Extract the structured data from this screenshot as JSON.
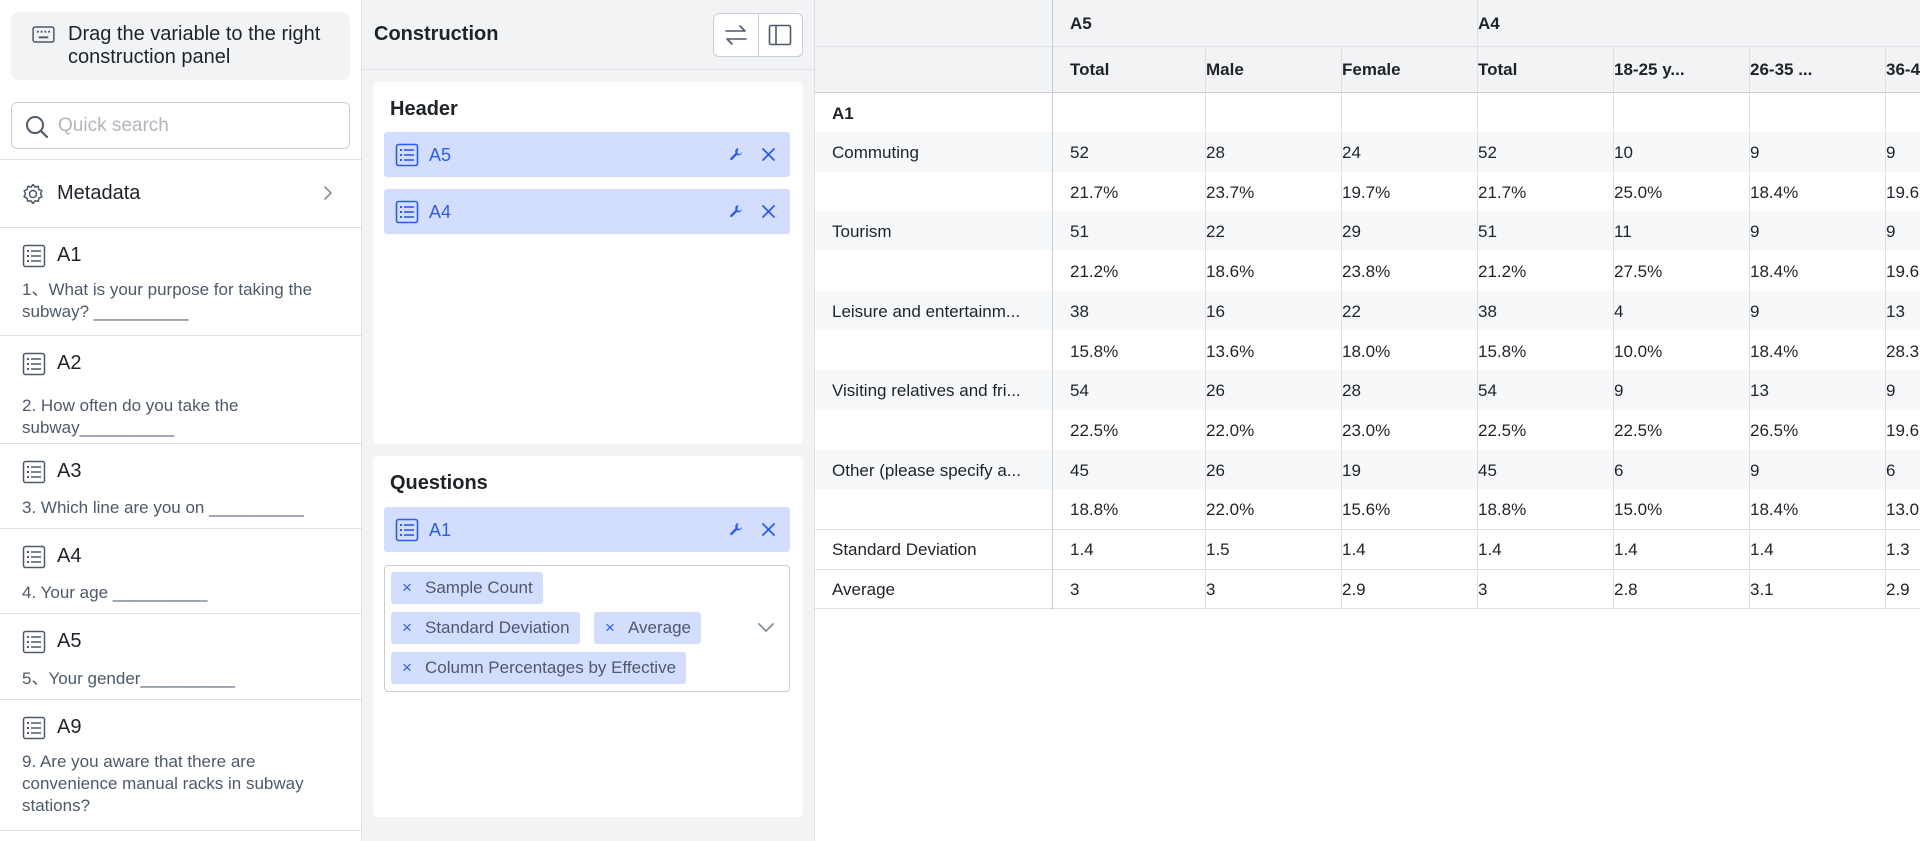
{
  "left_panel": {
    "hint_text": "Drag the variable to the right construction panel",
    "search_placeholder": "Quick search",
    "metadata_label": "Metadata",
    "variables": [
      {
        "name": "A1",
        "description": "1、What is your purpose for taking the subway? __________"
      },
      {
        "name": "A2",
        "description": "2. How often do you take the subway__________"
      },
      {
        "name": "A3",
        "description": "3. Which line are you on __________"
      },
      {
        "name": "A4",
        "description": "4. Your age __________"
      },
      {
        "name": "A5",
        "description": "5、Your gender__________"
      },
      {
        "name": "A9",
        "description": "9. Are you aware that there are convenience manual racks in subway stations?"
      }
    ]
  },
  "construction": {
    "title": "Construction",
    "header_section": {
      "title": "Header",
      "items": [
        "A5",
        "A4"
      ]
    },
    "questions_section": {
      "title": "Questions",
      "items": [
        "A1"
      ],
      "statistics": [
        "Sample Count",
        "Standard Deviation",
        "Average",
        "Column Percentages by Effective"
      ]
    }
  },
  "table": {
    "group_headers": [
      "A5",
      "A4"
    ],
    "columns": [
      "Total",
      "Male",
      "Female",
      "Total",
      "18-25 y...",
      "26-35 ...",
      "36-4"
    ],
    "question_label": "A1",
    "rows": [
      {
        "label": "Commuting",
        "values": [
          "52",
          "28",
          "24",
          "52",
          "10",
          "9",
          "9"
        ],
        "percents": [
          "21.7%",
          "23.7%",
          "19.7%",
          "21.7%",
          "25.0%",
          "18.4%",
          "19.6"
        ]
      },
      {
        "label": "Tourism",
        "values": [
          "51",
          "22",
          "29",
          "51",
          "11",
          "9",
          "9"
        ],
        "percents": [
          "21.2%",
          "18.6%",
          "23.8%",
          "21.2%",
          "27.5%",
          "18.4%",
          "19.6"
        ]
      },
      {
        "label": "Leisure and entertainm...",
        "values": [
          "38",
          "16",
          "22",
          "38",
          "4",
          "9",
          "13"
        ],
        "percents": [
          "15.8%",
          "13.6%",
          "18.0%",
          "15.8%",
          "10.0%",
          "18.4%",
          "28.3"
        ]
      },
      {
        "label": "Visiting relatives and fri...",
        "values": [
          "54",
          "26",
          "28",
          "54",
          "9",
          "13",
          "9"
        ],
        "percents": [
          "22.5%",
          "22.0%",
          "23.0%",
          "22.5%",
          "22.5%",
          "26.5%",
          "19.6"
        ]
      },
      {
        "label": "Other (please specify a...",
        "values": [
          "45",
          "26",
          "19",
          "45",
          "6",
          "9",
          "6"
        ],
        "percents": [
          "18.8%",
          "22.0%",
          "15.6%",
          "18.8%",
          "15.0%",
          "18.4%",
          "13.0"
        ]
      }
    ],
    "summary_rows": [
      {
        "label": "Standard Deviation",
        "values": [
          "1.4",
          "1.5",
          "1.4",
          "1.4",
          "1.4",
          "1.4",
          "1.3"
        ]
      },
      {
        "label": "Average",
        "values": [
          "3",
          "3",
          "2.9",
          "3",
          "2.8",
          "3.1",
          "2.9"
        ]
      }
    ]
  },
  "colors": {
    "accent": "#2c5de5",
    "chip_bg": "#d3ddfd",
    "panel_bg": "#f2f3f5",
    "border": "#dee0e3"
  }
}
